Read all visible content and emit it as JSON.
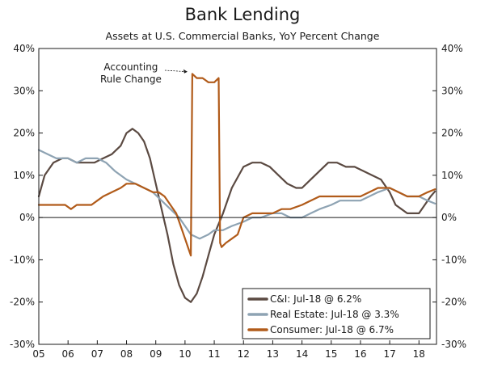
{
  "chart_data": {
    "type": "line",
    "title": "Bank Lending",
    "subtitle": "Assets at U.S. Commercial Banks, YoY Percent Change",
    "xlabel": "",
    "ylabel": "",
    "xlim": [
      2005.0,
      2018.6
    ],
    "ylim": [
      -30,
      40
    ],
    "x_ticks": [
      {
        "x": 2005,
        "label": "05"
      },
      {
        "x": 2006,
        "label": "06"
      },
      {
        "x": 2007,
        "label": "07"
      },
      {
        "x": 2008,
        "label": "08"
      },
      {
        "x": 2009,
        "label": "09"
      },
      {
        "x": 2010,
        "label": "10"
      },
      {
        "x": 2011,
        "label": "11"
      },
      {
        "x": 2012,
        "label": "12"
      },
      {
        "x": 2013,
        "label": "13"
      },
      {
        "x": 2014,
        "label": "14"
      },
      {
        "x": 2015,
        "label": "15"
      },
      {
        "x": 2016,
        "label": "16"
      },
      {
        "x": 2017,
        "label": "17"
      },
      {
        "x": 2018,
        "label": "18"
      }
    ],
    "y_ticks": [
      {
        "y": 40,
        "label": "40%"
      },
      {
        "y": 30,
        "label": "30%"
      },
      {
        "y": 20,
        "label": "20%"
      },
      {
        "y": 10,
        "label": "10%"
      },
      {
        "y": 0,
        "label": "0%"
      },
      {
        "y": -10,
        "label": "-10%"
      },
      {
        "y": -20,
        "label": "-20%"
      },
      {
        "y": -30,
        "label": "-30%"
      }
    ],
    "grid": false,
    "zero_line": true,
    "legend_position": "bottom-right",
    "annotation": {
      "text_lines": [
        "Accounting",
        "Rule Change"
      ],
      "x": 2010.25,
      "y": 34.5
    },
    "series": [
      {
        "name": "C&I: Jul-18 @ 6.2%",
        "color": "#5b4a42",
        "x": [
          2005.0,
          2005.2,
          2005.5,
          2005.8,
          2006.0,
          2006.3,
          2006.6,
          2006.9,
          2007.2,
          2007.5,
          2007.8,
          2008.0,
          2008.2,
          2008.4,
          2008.6,
          2008.8,
          2009.0,
          2009.2,
          2009.4,
          2009.6,
          2009.8,
          2010.0,
          2010.2,
          2010.4,
          2010.6,
          2010.8,
          2011.0,
          2011.3,
          2011.6,
          2012.0,
          2012.3,
          2012.6,
          2012.9,
          2013.2,
          2013.5,
          2013.8,
          2014.0,
          2014.3,
          2014.6,
          2014.9,
          2015.2,
          2015.5,
          2015.8,
          2016.1,
          2016.4,
          2016.7,
          2017.0,
          2017.2,
          2017.4,
          2017.6,
          2017.8,
          2018.0,
          2018.2,
          2018.4,
          2018.55
        ],
        "y": [
          5,
          10,
          13,
          14,
          14,
          13,
          13,
          13,
          14,
          15,
          17,
          20,
          21,
          20,
          18,
          14,
          8,
          2,
          -4,
          -11,
          -16,
          -19,
          -20,
          -18,
          -14,
          -9,
          -4,
          1,
          7,
          12,
          13,
          13,
          12,
          10,
          8,
          7,
          7,
          9,
          11,
          13,
          13,
          12,
          12,
          11,
          10,
          9,
          6,
          3,
          2,
          1,
          1,
          1,
          3,
          5,
          6.2
        ]
      },
      {
        "name": "Real Estate: Jul-18 @ 3.3%",
        "color": "#8ea3b3",
        "x": [
          2005.0,
          2005.3,
          2005.6,
          2006.0,
          2006.3,
          2006.6,
          2007.0,
          2007.3,
          2007.6,
          2008.0,
          2008.3,
          2008.6,
          2008.9,
          2009.2,
          2009.5,
          2009.8,
          2010.0,
          2010.2,
          2010.5,
          2010.8,
          2011.0,
          2011.3,
          2011.6,
          2012.0,
          2012.3,
          2012.6,
          2013.0,
          2013.3,
          2013.6,
          2014.0,
          2014.3,
          2014.6,
          2015.0,
          2015.3,
          2015.6,
          2016.0,
          2016.3,
          2016.6,
          2017.0,
          2017.3,
          2017.6,
          2018.0,
          2018.3,
          2018.55
        ],
        "y": [
          16,
          15,
          14,
          14,
          13,
          14,
          14,
          13,
          11,
          9,
          8,
          7,
          6,
          4,
          2,
          0,
          -2,
          -4,
          -5,
          -4,
          -3,
          -3,
          -2,
          -1,
          0,
          0,
          1,
          1,
          0,
          0,
          1,
          2,
          3,
          4,
          4,
          4,
          5,
          6,
          7,
          6,
          5,
          5,
          4,
          3.3
        ]
      },
      {
        "name": "Consumer: Jul-18 @ 6.7%",
        "color": "#b15b1a",
        "x": [
          2005.0,
          2005.3,
          2005.6,
          2005.9,
          2006.1,
          2006.3,
          2006.5,
          2006.8,
          2007.0,
          2007.2,
          2007.5,
          2007.8,
          2008.0,
          2008.3,
          2008.6,
          2008.9,
          2009.1,
          2009.3,
          2009.5,
          2009.7,
          2009.9,
          2010.05,
          2010.15,
          2010.2,
          2010.25,
          2010.4,
          2010.6,
          2010.8,
          2011.0,
          2011.15,
          2011.2,
          2011.25,
          2011.4,
          2011.6,
          2011.8,
          2012.0,
          2012.3,
          2012.6,
          2013.0,
          2013.3,
          2013.6,
          2014.0,
          2014.3,
          2014.6,
          2015.0,
          2015.3,
          2015.6,
          2016.0,
          2016.3,
          2016.6,
          2017.0,
          2017.3,
          2017.6,
          2018.0,
          2018.3,
          2018.55
        ],
        "y": [
          3,
          3,
          3,
          3,
          2,
          3,
          3,
          3,
          4,
          5,
          6,
          7,
          8,
          8,
          7,
          6,
          6,
          5,
          3,
          1,
          -3,
          -6,
          -8,
          -9,
          34,
          33,
          33,
          32,
          32,
          33,
          -6,
          -7,
          -6,
          -5,
          -4,
          0,
          1,
          1,
          1,
          2,
          2,
          3,
          4,
          5,
          5,
          5,
          5,
          5,
          6,
          7,
          7,
          6,
          5,
          5,
          6,
          6.7
        ]
      }
    ]
  },
  "legend": {
    "items": [
      {
        "label": "C&I: Jul-18 @ 6.2%",
        "color": "#5b4a42"
      },
      {
        "label": "Real Estate: Jul-18 @ 3.3%",
        "color": "#8ea3b3"
      },
      {
        "label": "Consumer: Jul-18 @ 6.7%",
        "color": "#b15b1a"
      }
    ]
  }
}
